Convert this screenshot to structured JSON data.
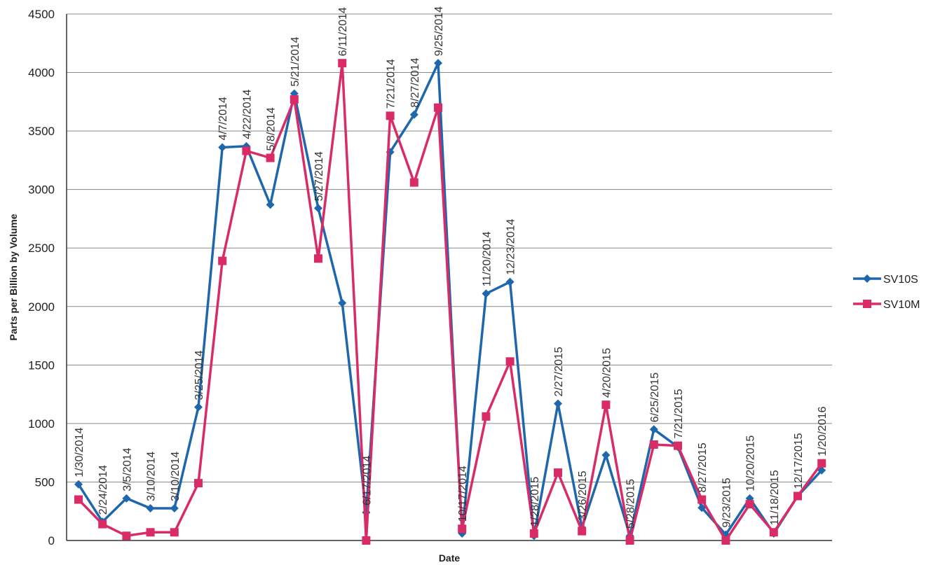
{
  "chart_data": {
    "type": "line",
    "xlabel": "Date",
    "ylabel": "Parts per Billion by Volume",
    "ylim": [
      0,
      4500
    ],
    "y_ticks": [
      "0",
      "500",
      "1000",
      "1500",
      "2000",
      "2500",
      "3000",
      "3500",
      "4000",
      "4500"
    ],
    "grid": true,
    "legend_position": "right",
    "x": [
      "1/30/2014",
      "2/24/2014",
      "3/5/2014",
      "3/10/2014",
      "3/10/2014",
      "3/25/2014",
      "4/7/2014",
      "4/22/2014",
      "5/8/2014",
      "5/21/2014",
      "5/27/2014",
      "6/11/2014",
      "6/17/2014",
      "7/21/2014",
      "8/27/2014",
      "9/25/2014",
      "10/17/2014",
      "11/20/2014",
      "12/23/2014",
      "1/28/2015",
      "2/27/2015",
      "3/26/2015",
      "4/20/2015",
      "5/28/2015",
      "6/25/2015",
      "7/21/2015",
      "8/27/2015",
      "9/23/2015",
      "10/20/2015",
      "11/18/2015",
      "12/17/2015",
      "1/20/2016"
    ],
    "point_labels": [
      "1/30/2014",
      "2/24/2014",
      "3/5/2014",
      "3/10/2014",
      "3/10/2014",
      "3/25/2014",
      "4/7/2014",
      "4/22/2014",
      "5/8/2014",
      "5/21/2014",
      "5/27/2014",
      "6/11/2014",
      "6/17/2014",
      "7/21/2014",
      "8/27/2014",
      "9/25/2014",
      "10/17/2014",
      "11/20/2014",
      "12/23/2014",
      "1/28/2015",
      "2/27/2015",
      "3/26/2015",
      "4/20/2015",
      "5/28/2015",
      "6/25/2015",
      "7/21/2015",
      "8/27/2015",
      "9/23/2015",
      "10/20/2015",
      "11/18/2015",
      "12/17/2015",
      "1/20/2016"
    ],
    "series": [
      {
        "name": "SV10S",
        "color": "#1f67ad",
        "marker": "diamond",
        "values": [
          480,
          160,
          360,
          275,
          275,
          1140,
          3360,
          3370,
          2870,
          3820,
          2840,
          2030,
          240,
          3320,
          3640,
          4080,
          60,
          2110,
          2210,
          40,
          1170,
          110,
          730,
          40,
          950,
          800,
          280,
          50,
          360,
          60,
          380,
          600
        ]
      },
      {
        "name": "SV10M",
        "color": "#d92b66",
        "marker": "square",
        "values": [
          350,
          140,
          40,
          70,
          70,
          490,
          2390,
          3330,
          3270,
          3770,
          2410,
          4080,
          0,
          3630,
          3060,
          3700,
          100,
          1060,
          1530,
          60,
          580,
          80,
          1160,
          0,
          820,
          810,
          350,
          0,
          310,
          70,
          380,
          660
        ]
      }
    ]
  }
}
